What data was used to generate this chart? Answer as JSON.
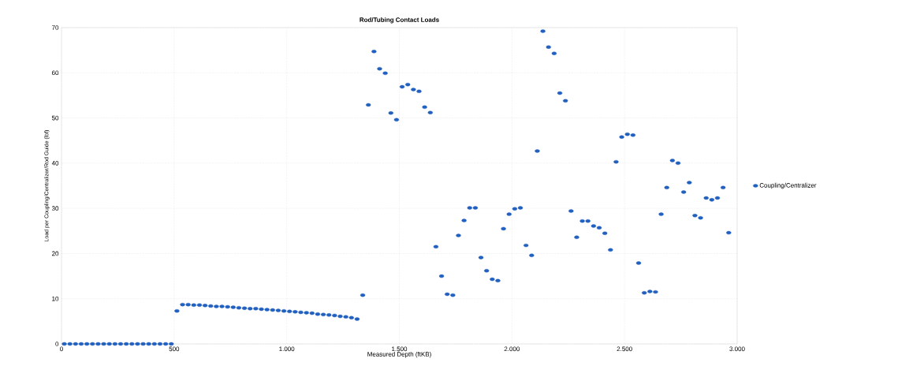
{
  "chart_data": {
    "type": "scatter",
    "title": "**Rod/Tubing Contact Loads**",
    "xlabel": "Measured Depth (ftKB)",
    "ylabel": "Load per Coupling/Centralizer/Rod Guide (lbf)",
    "xlim": [
      0,
      3000
    ],
    "ylim": [
      0,
      70
    ],
    "xticks": [
      0,
      500,
      {
        "value": 1000,
        "label": "1.000"
      },
      {
        "value": 1500,
        "label": "1.500"
      },
      {
        "value": 2000,
        "label": "2.000"
      },
      {
        "value": 2500,
        "label": "2.500"
      },
      {
        "value": 3000,
        "label": "3.000"
      }
    ],
    "yticks": [
      0,
      10,
      20,
      30,
      40,
      50,
      60,
      70
    ],
    "grid": true,
    "legend": "right",
    "marker": "circle",
    "series": [
      {
        "name": "Coupling/Centralizer",
        "color": "#2260c0",
        "x": [
          12.5,
          37.5,
          62.5,
          87.5,
          112.5,
          137.5,
          162.5,
          187.5,
          212.5,
          237.5,
          262.5,
          287.5,
          312.5,
          337.5,
          362.5,
          387.5,
          412.5,
          437.5,
          462.5,
          487.5,
          512.5,
          537.5,
          562.5,
          587.5,
          612.5,
          637.5,
          662.5,
          687.5,
          712.5,
          737.5,
          762.5,
          787.5,
          812.5,
          837.5,
          862.5,
          887.5,
          912.5,
          937.5,
          962.5,
          987.5,
          1012.5,
          1037.5,
          1062.5,
          1087.5,
          1112.5,
          1137.5,
          1162.5,
          1187.5,
          1212.5,
          1237.5,
          1262.5,
          1287.5,
          1312.5,
          1337.5,
          1362.5,
          1387.5,
          1412.5,
          1437.5,
          1462.5,
          1487.5,
          1512.5,
          1537.5,
          1562.5,
          1587.5,
          1612.5,
          1637.5,
          1662.5,
          1687.5,
          1712.5,
          1737.5,
          1762.5,
          1787.5,
          1812.5,
          1837.5,
          1862.5,
          1887.5,
          1912.5,
          1937.5,
          1962.5,
          1987.5,
          2012.5,
          2037.5,
          2062.5,
          2087.5,
          2112.5,
          2137.5,
          2162.5,
          2187.5,
          2212.5,
          2237.5,
          2262.5,
          2287.5,
          2312.5,
          2337.5,
          2362.5,
          2387.5,
          2412.5,
          2437.5,
          2462.5,
          2487.5,
          2512.5,
          2537.5,
          2562.5,
          2587.5,
          2612.5,
          2637.5,
          2662.5,
          2687.5,
          2712.5,
          2737.5,
          2762.5,
          2787.5,
          2812.5,
          2837.5,
          2862.5,
          2887.5,
          2912.5,
          2937.5,
          2962.5
        ],
        "values": [
          0,
          0,
          0,
          0,
          0,
          0,
          0,
          0,
          0,
          0,
          0,
          0,
          0,
          0,
          0,
          0,
          0,
          0,
          0,
          0,
          7.3,
          8.7,
          8.7,
          8.6,
          8.6,
          8.5,
          8.4,
          8.3,
          8.3,
          8.2,
          8.1,
          8.0,
          7.9,
          7.8,
          7.8,
          7.7,
          7.6,
          7.5,
          7.4,
          7.3,
          7.2,
          7.1,
          7.0,
          6.9,
          6.8,
          6.6,
          6.5,
          6.4,
          6.3,
          6.1,
          6.0,
          5.8,
          5.5,
          10.8,
          52.9,
          64.7,
          60.9,
          59.9,
          51.1,
          49.6,
          56.9,
          57.4,
          56.3,
          55.9,
          52.4,
          51.2,
          21.5,
          15.0,
          11.0,
          10.8,
          24.0,
          27.3,
          30.1,
          30.1,
          19.1,
          16.2,
          14.3,
          14.0,
          25.5,
          28.7,
          29.9,
          30.1,
          21.8,
          19.6,
          42.7,
          69.2,
          65.7,
          64.3,
          55.5,
          53.8,
          29.4,
          23.6,
          27.2,
          27.2,
          26.1,
          25.7,
          24.5,
          20.8,
          40.3,
          45.8,
          46.4,
          46.2,
          17.9,
          11.3,
          11.6,
          11.5,
          28.7,
          34.6,
          40.6,
          40.0,
          33.6,
          35.7,
          28.4,
          27.9,
          32.3,
          31.9,
          32.3,
          34.6,
          24.6
        ]
      }
    ]
  }
}
